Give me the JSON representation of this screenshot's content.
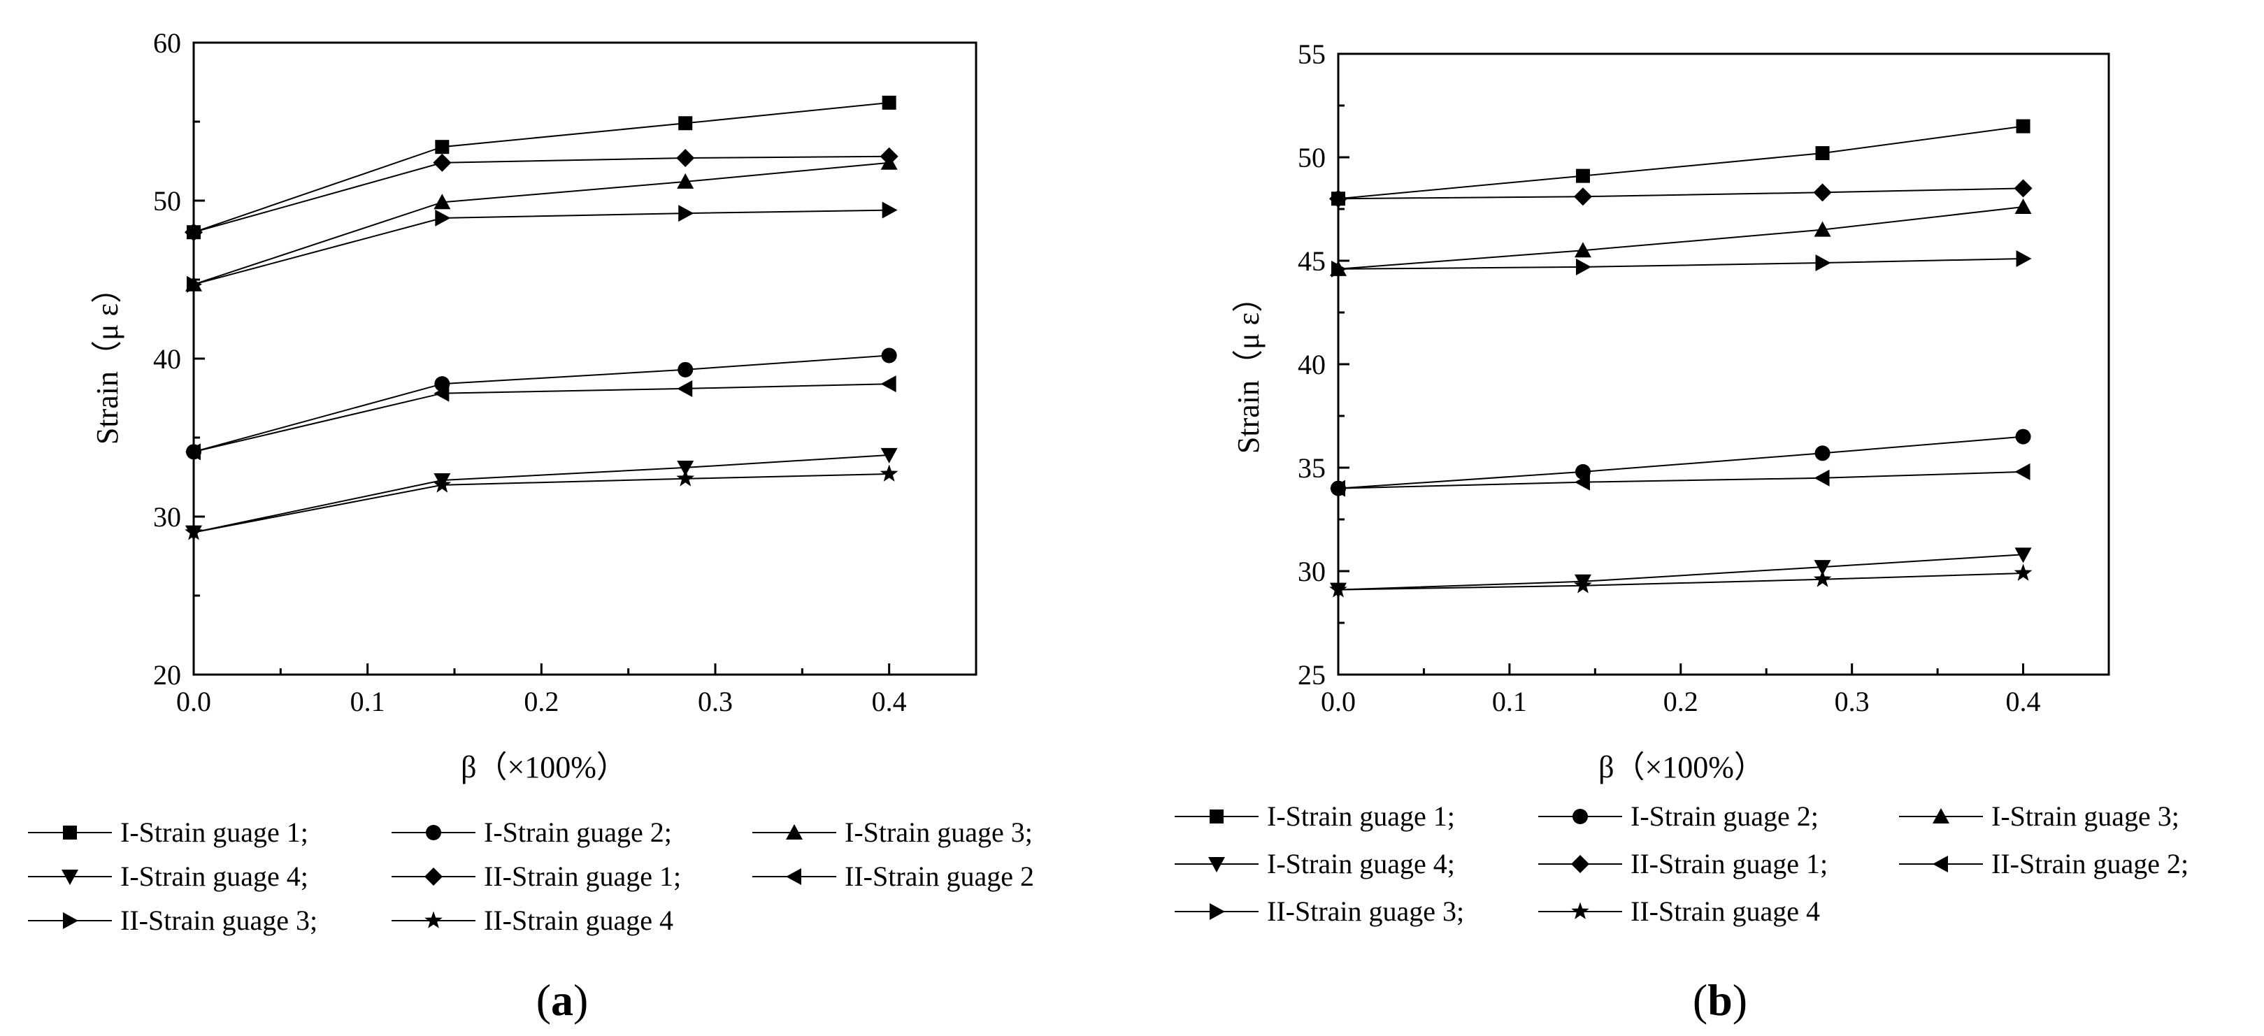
{
  "chart_data": [
    {
      "type": "line",
      "panel": "a",
      "xlabel": "β（×100%）",
      "ylabel": "Strain（μ ε）",
      "xlim": [
        0.0,
        0.45
      ],
      "ylim": [
        20,
        60
      ],
      "xticks": [
        0.0,
        0.1,
        0.2,
        0.3,
        0.4
      ],
      "xtick_labels": [
        "0.0",
        "0.1",
        "0.2",
        "0.3",
        "0.4"
      ],
      "yticks": [
        20,
        30,
        40,
        50,
        60
      ],
      "ytick_labels": [
        "20",
        "30",
        "40",
        "50",
        "60"
      ],
      "x": [
        0.0,
        0.1429,
        0.2828,
        0.4
      ],
      "legend_entries": [
        "I-Strain guage 1;",
        "I-Strain guage 2;",
        "I-Strain guage 3;",
        "I-Strain guage 4;",
        "II-Strain guage 1;",
        "II-Strain guage 2",
        "II-Strain guage 3;",
        "II-Strain guage 4"
      ],
      "series": [
        {
          "name": "I-Strain guage 1",
          "marker": "square",
          "values": [
            48.0,
            53.4,
            54.9,
            56.2
          ]
        },
        {
          "name": "I-Strain guage 2",
          "marker": "circle",
          "values": [
            34.1,
            38.4,
            39.3,
            40.2
          ]
        },
        {
          "name": "I-Strain guage 3",
          "marker": "triangle-up",
          "values": [
            44.7,
            49.9,
            51.2,
            52.4
          ]
        },
        {
          "name": "I-Strain guage 4",
          "marker": "triangle-down",
          "values": [
            29.0,
            32.3,
            33.1,
            33.9
          ]
        },
        {
          "name": "II-Strain guage 1",
          "marker": "diamond",
          "values": [
            48.0,
            52.4,
            52.7,
            52.8
          ]
        },
        {
          "name": "II-Strain guage 2",
          "marker": "triangle-left",
          "values": [
            34.1,
            37.8,
            38.1,
            38.4
          ]
        },
        {
          "name": "II-Strain guage 3",
          "marker": "triangle-right",
          "values": [
            44.7,
            48.9,
            49.2,
            49.4
          ]
        },
        {
          "name": "II-Strain guage 4",
          "marker": "star",
          "values": [
            29.0,
            32.0,
            32.4,
            32.7
          ]
        }
      ]
    },
    {
      "type": "line",
      "panel": "b",
      "xlabel": "β（×100%）",
      "ylabel": "Strain（μ ε）",
      "xlim": [
        0.0,
        0.45
      ],
      "ylim": [
        25,
        55
      ],
      "xticks": [
        0.0,
        0.1,
        0.2,
        0.3,
        0.4
      ],
      "xtick_labels": [
        "0.0",
        "0.1",
        "0.2",
        "0.3",
        "0.4"
      ],
      "yticks": [
        25,
        30,
        35,
        40,
        45,
        50,
        55
      ],
      "ytick_labels": [
        "25",
        "30",
        "35",
        "40",
        "45",
        "50",
        "55"
      ],
      "x": [
        0.0,
        0.1429,
        0.2828,
        0.4
      ],
      "legend_entries": [
        "I-Strain guage 1;",
        "I-Strain guage 2;",
        "I-Strain guage 3;",
        "I-Strain guage 4;",
        "II-Strain guage 1;",
        "II-Strain guage 2;",
        "II-Strain guage 3;",
        "II-Strain guage 4"
      ],
      "series": [
        {
          "name": "I-Strain guage 1",
          "marker": "square",
          "values": [
            48.0,
            49.1,
            50.2,
            51.5
          ]
        },
        {
          "name": "I-Strain guage 2",
          "marker": "circle",
          "values": [
            34.0,
            34.8,
            35.7,
            36.5
          ]
        },
        {
          "name": "I-Strain guage 3",
          "marker": "triangle-up",
          "values": [
            44.6,
            45.5,
            46.5,
            47.6
          ]
        },
        {
          "name": "I-Strain guage 4",
          "marker": "triangle-down",
          "values": [
            29.1,
            29.5,
            30.2,
            30.8
          ]
        },
        {
          "name": "II-Strain guage 1",
          "marker": "diamond",
          "values": [
            48.0,
            48.1,
            48.3,
            48.5
          ]
        },
        {
          "name": "II-Strain guage 2",
          "marker": "triangle-left",
          "values": [
            34.0,
            34.3,
            34.5,
            34.8
          ]
        },
        {
          "name": "II-Strain guage 3",
          "marker": "triangle-right",
          "values": [
            44.6,
            44.7,
            44.9,
            45.1
          ]
        },
        {
          "name": "II-Strain guage 4",
          "marker": "star",
          "values": [
            29.1,
            29.3,
            29.6,
            29.9
          ]
        }
      ]
    }
  ],
  "panels": {
    "a": {
      "open": "(",
      "letter": "a",
      "close": ")"
    },
    "b": {
      "open": "(",
      "letter": "b",
      "close": ")"
    }
  }
}
